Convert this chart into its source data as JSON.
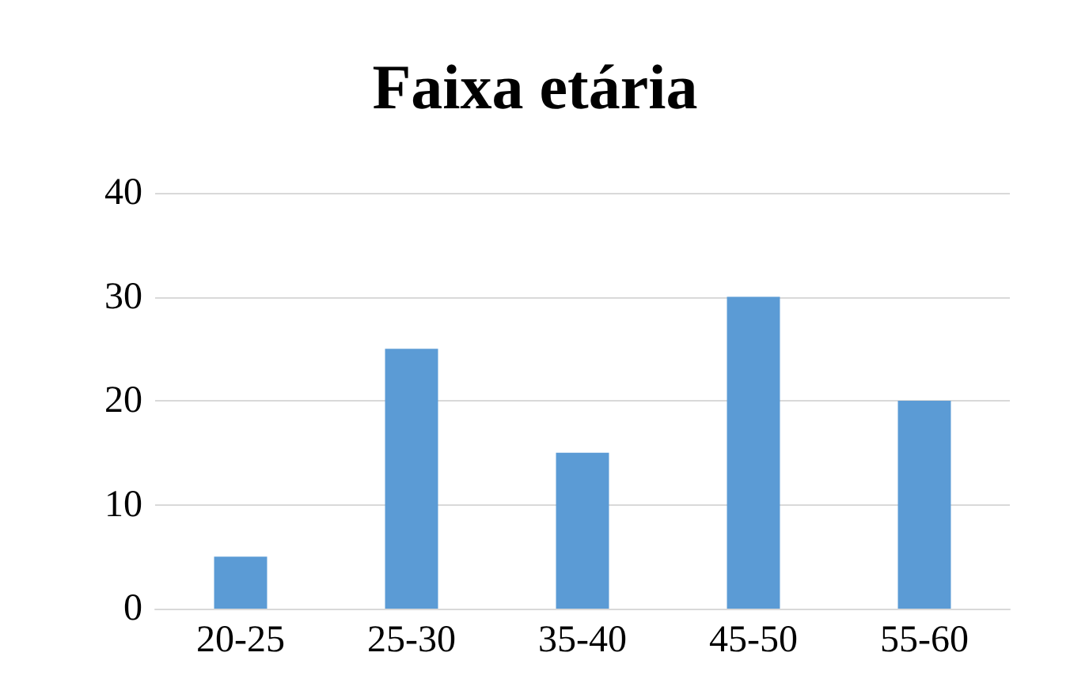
{
  "chart_data": {
    "type": "bar",
    "title": "Faixa etária",
    "categories": [
      "20-25",
      "25-30",
      "35-40",
      "45-50",
      "55-60"
    ],
    "values": [
      5,
      25,
      15,
      30,
      20
    ],
    "color": "#5b9bd5",
    "ylim": [
      0,
      40
    ],
    "yticks": [
      0,
      10,
      20,
      30,
      40
    ],
    "grid": "y"
  }
}
